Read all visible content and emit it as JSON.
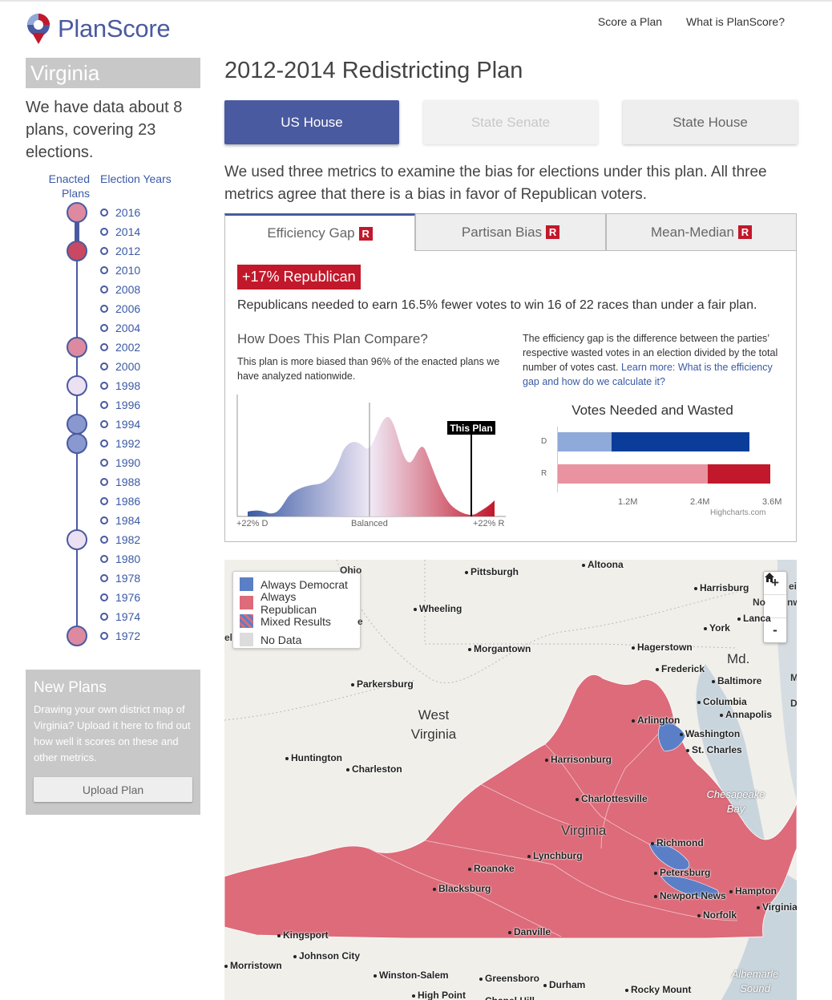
{
  "header": {
    "logo_text": "PlanScore",
    "nav": [
      "Score a Plan",
      "What is PlanScore?"
    ]
  },
  "sidebar": {
    "state": "Virginia",
    "coverage": "We have data about 8 plans, covering 23 elections.",
    "col_enacted": "Enacted Plans",
    "col_years": "Election Years",
    "years": [
      "2016",
      "2014",
      "2012",
      "2010",
      "2008",
      "2006",
      "2004",
      "2002",
      "2000",
      "1998",
      "1996",
      "1994",
      "1992",
      "1990",
      "1988",
      "1986",
      "1984",
      "1982",
      "1980",
      "1978",
      "1976",
      "1974",
      "1972"
    ],
    "new_plans": {
      "title": "New Plans",
      "text": "Drawing your own district map of Virginia? Upload it here to find out how well it scores on these and other metrics.",
      "button": "Upload Plan"
    }
  },
  "main": {
    "title": "2012-2014 Redistricting Plan",
    "chambers": [
      "US House",
      "State Senate",
      "State House"
    ],
    "summary": "We used three metrics to examine the bias for elections under this plan. All three metrics agree that there is a bias in favor of Republican voters.",
    "tabs": [
      {
        "label": "Efficiency Gap",
        "badge": "R"
      },
      {
        "label": "Partisan Bias",
        "badge": "R"
      },
      {
        "label": "Mean-Median",
        "badge": "R"
      }
    ],
    "badge": "+17% Republican",
    "verdict": "Republicans needed to earn 16.5% fewer votes to win 16 of 22 races than under a fair plan.",
    "compare_title": "How Does This Plan Compare?",
    "compare_text": "This plan is more biased than 96% of the enacted plans we have analyzed nationwide.",
    "definition": "The efficiency gap is the difference between the parties’ respective wasted votes in an election divided by the total number of votes cast.",
    "learn_more": "Learn more: What is the efficiency gap and how do we calculate it?",
    "distribution": {
      "marker": "This Plan",
      "left": "+22% D",
      "center": "Balanced",
      "right": "+22% R"
    },
    "votes_chart": {
      "title": "Votes Needed and Wasted",
      "categories": [
        "D",
        "R"
      ],
      "ticks": [
        "1.2M",
        "2.4M",
        "3.6M"
      ],
      "credit": "Highcharts.com"
    }
  },
  "chart_data": {
    "type": "bar",
    "title": "Votes Needed and Wasted",
    "categories": [
      "D",
      "R"
    ],
    "series": [
      {
        "values": [
          0.9,
          2.5
        ]
      },
      {
        "values": [
          2.3,
          1.05
        ]
      }
    ],
    "xlim": [
      0,
      3.6
    ],
    "colors": [
      "#8fa9d8",
      "#0a3d9a",
      "#e8939f",
      "#c2182b"
    ]
  },
  "map": {
    "legend": [
      {
        "label": "Always Democrat",
        "color": "#5b7fc7"
      },
      {
        "label": "Always Republican",
        "color": "#dd6b7a"
      },
      {
        "label": "Mixed Results",
        "color": "mixed"
      },
      {
        "label": "No Data",
        "color": "#dcdcdc"
      }
    ],
    "controls": [
      "+",
      "home",
      "-"
    ],
    "cities": [
      "Pittsburgh",
      "Altoona",
      "Harrisburg",
      "Wheeling",
      "York",
      "Lanca",
      "Morgantown",
      "Hagerstown",
      "Frederick",
      "Parkersburg",
      "Baltimore",
      "Columbia",
      "Annapolis",
      "Arlington",
      "Washington",
      "St. Charles",
      "Huntington",
      "Charleston",
      "Harrisonburg",
      "Charlottesville",
      "Richmond",
      "Lynchburg",
      "Roanoke",
      "Petersburg",
      "Blacksburg",
      "Newport News",
      "Hampton",
      "Norfolk",
      "Virginia",
      "Danville",
      "Kingsport",
      "Johnson City",
      "Morristown",
      "Winston-Salem",
      "Greensboro",
      "Durham",
      "Rocky Mount",
      "High Point",
      "Chapel Hill"
    ],
    "regions": [
      "West Virginia",
      "Virginia",
      "Md."
    ],
    "water": [
      "Chesapeake Bay",
      "Albemarle Sound"
    ],
    "clipped_labels": [
      "Ohio",
      "e",
      "ein",
      "No",
      "nw",
      "el",
      "M",
      "D"
    ]
  }
}
